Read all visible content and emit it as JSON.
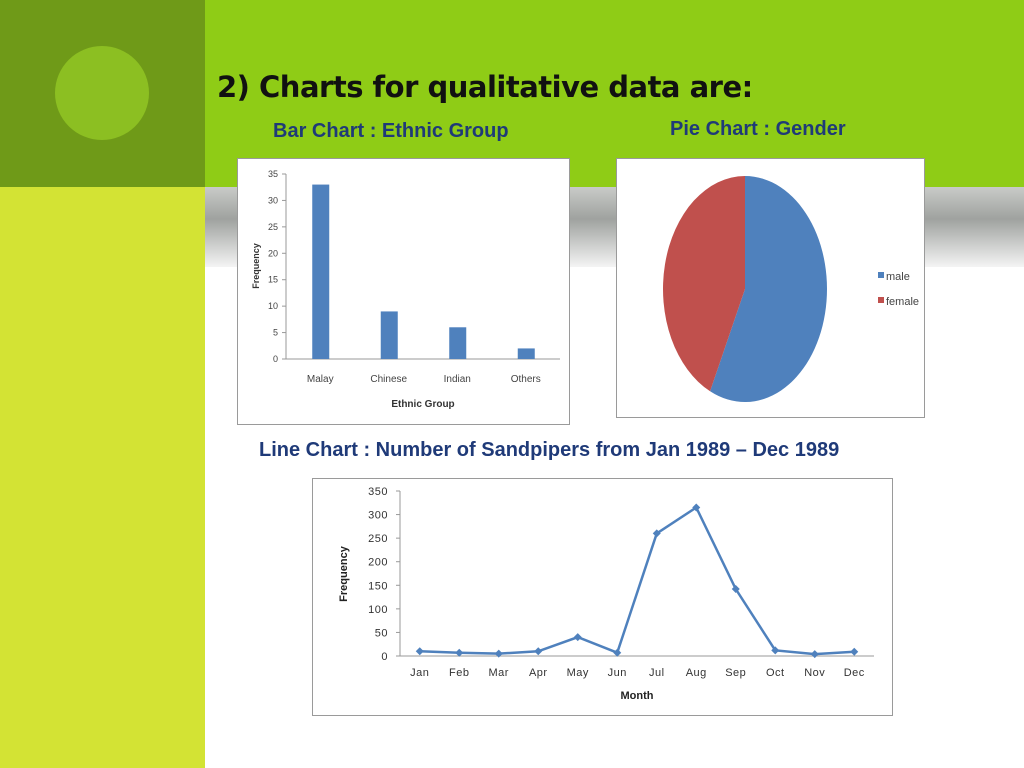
{
  "slide": {
    "title": "2) Charts for qualitative data are:",
    "bar_heading": "Bar Chart : Ethnic Group",
    "pie_heading": "Pie Chart : Gender",
    "line_heading": "Line Chart : Number of Sandpipers from Jan 1989 – Dec 1989",
    "colors": {
      "dark_green": "#6f9a18",
      "green": "#8fcc16",
      "lime": "#d3e334",
      "heading": "#1f3a78"
    }
  },
  "chart_data": [
    {
      "type": "bar",
      "categories": [
        "Malay",
        "Chinese",
        "Indian",
        "Others"
      ],
      "values": [
        33,
        9,
        6,
        2
      ],
      "xlabel": "Ethnic Group",
      "ylabel": "Frequency",
      "ylim": [
        0,
        35
      ],
      "yticks": [
        0,
        5,
        10,
        15,
        20,
        25,
        30,
        35
      ],
      "color": "#4f81bd",
      "grid": false
    },
    {
      "type": "pie",
      "categories": [
        "male",
        "female"
      ],
      "values": [
        57,
        43
      ],
      "colors": [
        "#4f81bd",
        "#c0504d"
      ],
      "legend": "right"
    },
    {
      "type": "line",
      "categories": [
        "Jan",
        "Feb",
        "Mar",
        "Apr",
        "May",
        "Jun",
        "Jul",
        "Aug",
        "Sep",
        "Oct",
        "Nov",
        "Dec"
      ],
      "values": [
        10,
        7,
        5,
        10,
        40,
        7,
        260,
        315,
        142,
        12,
        4,
        9
      ],
      "xlabel": "Month",
      "ylabel": "Frequency",
      "ylim": [
        0,
        350
      ],
      "yticks": [
        0,
        50,
        100,
        150,
        200,
        250,
        300,
        350
      ],
      "color": "#4f81bd",
      "marker": "diamond",
      "grid": false
    }
  ]
}
